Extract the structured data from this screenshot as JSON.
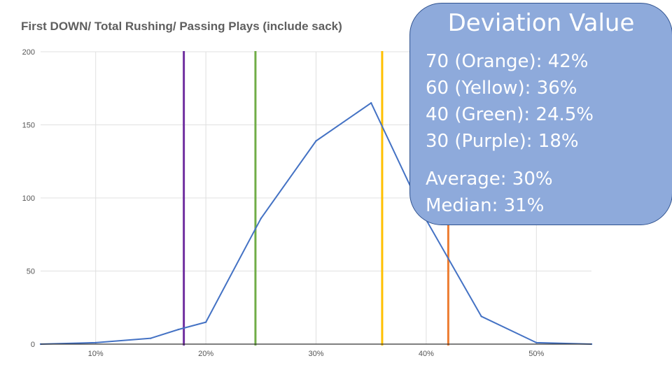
{
  "chart_data": {
    "type": "line",
    "title": "First DOWN/ Total Rushing/ Passing Plays (include sack)",
    "xlabel": "",
    "ylabel": "",
    "xlim": [
      5,
      55
    ],
    "ylim": [
      0,
      200
    ],
    "x_ticks": [
      {
        "value": 10,
        "label": "10%"
      },
      {
        "value": 20,
        "label": "20%"
      },
      {
        "value": 30,
        "label": "30%"
      },
      {
        "value": 40,
        "label": "40%"
      },
      {
        "value": 50,
        "label": "50%"
      }
    ],
    "y_ticks": [
      {
        "value": 0,
        "label": "0"
      },
      {
        "value": 50,
        "label": "50"
      },
      {
        "value": 100,
        "label": "100"
      },
      {
        "value": 150,
        "label": "150"
      },
      {
        "value": 200,
        "label": "200"
      }
    ],
    "grid": true,
    "series": [
      {
        "color": "#4472c4",
        "x": [
          5,
          10,
          15,
          17.5,
          20,
          25,
          30,
          35,
          40,
          45,
          50,
          55
        ],
        "y": [
          0,
          1,
          4,
          10,
          15,
          86,
          139,
          165,
          85,
          19,
          1,
          0
        ]
      }
    ],
    "reference_lines": [
      {
        "label": "Purple",
        "x": 18,
        "color": "#7030a0"
      },
      {
        "label": "Green",
        "x": 24.5,
        "color": "#70ad47"
      },
      {
        "label": "Yellow",
        "x": 36,
        "color": "#ffc000"
      },
      {
        "label": "Orange",
        "x": 42,
        "color": "#ed7d31"
      }
    ]
  },
  "callout": {
    "title": "Deviation Value",
    "lines": [
      "70 (Orange): 42%",
      "60 (Yellow): 36%",
      "40 (Green): 24.5%",
      "30 (Purple): 18%",
      "Average: 30%",
      "Median: 31%"
    ]
  },
  "colors": {
    "line": "#4472c4",
    "callout_fill": "#8eaadb",
    "callout_border": "#2f528f",
    "grid": "#e0e0e0",
    "axis": "#333333"
  }
}
